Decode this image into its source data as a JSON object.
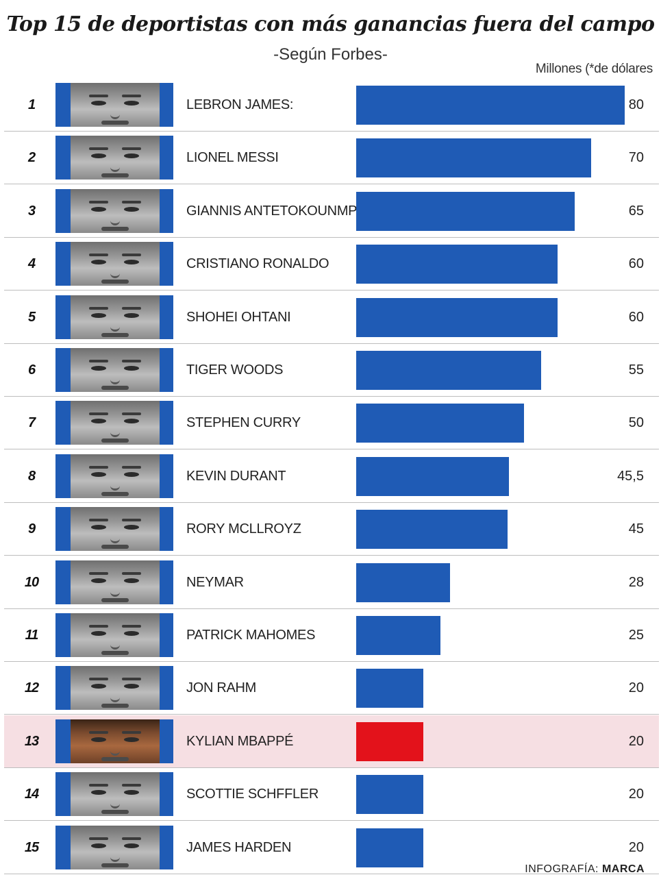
{
  "chart_data": {
    "type": "bar",
    "orientation": "horizontal",
    "title": "Top 15 de deportistas con más ganancias fuera del campo",
    "subtitle": "-Según Forbes-",
    "unit_label": "Millones (*de dólares",
    "categories": [
      "LEBRON JAMES:",
      "LIONEL MESSI",
      "GIANNIS ANTETOKOUNMPO",
      "CRISTIANO RONALDO",
      "SHOHEI OHTANI",
      "TIGER WOODS",
      "STEPHEN CURRY",
      "KEVIN DURANT",
      "RORY MCLLROYZ",
      "NEYMAR",
      "PATRICK MAHOMES",
      "JON RAHM",
      "KYLIAN MBAPPÉ",
      "SCOTTIE SCHFFLER",
      "JAMES HARDEN"
    ],
    "ranks": [
      "1",
      "2",
      "3",
      "4",
      "5",
      "6",
      "7",
      "8",
      "9",
      "10",
      "11",
      "12",
      "13",
      "14",
      "15"
    ],
    "values": [
      80,
      70,
      65,
      60,
      60,
      55,
      50,
      45.5,
      45,
      28,
      25,
      20,
      20,
      20,
      20
    ],
    "value_labels": [
      "80",
      "70",
      "65",
      "60",
      "60",
      "55",
      "50",
      "45,5",
      "45",
      "28",
      "25",
      "20",
      "20",
      "20",
      "20"
    ],
    "highlight_index": 12,
    "xlim": [
      0,
      80
    ],
    "grid": false,
    "colors": {
      "bar": "#1f5bb5",
      "highlight_bar": "#e3121b",
      "highlight_row": "#f6dfe3",
      "photo_bg": "#1f5bb5"
    }
  },
  "credit": {
    "label": "INFOGRAFÍA:",
    "brand": "MARCA"
  }
}
